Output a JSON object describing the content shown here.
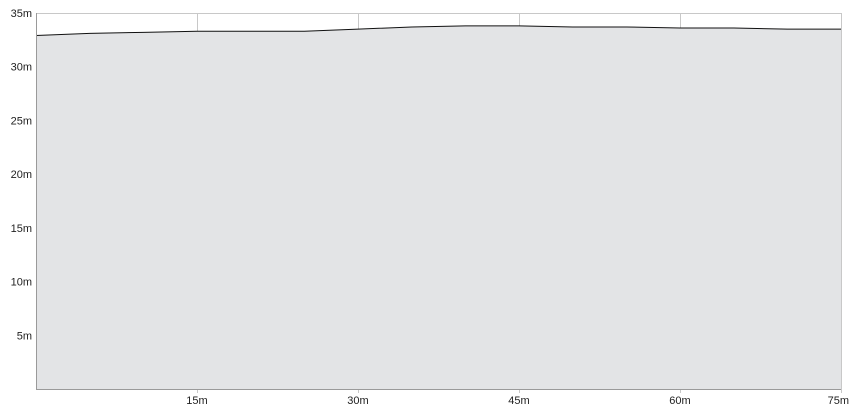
{
  "chart_data": {
    "type": "area",
    "x": [
      0,
      5,
      10,
      15,
      20,
      25,
      30,
      35,
      40,
      45,
      50,
      55,
      60,
      65,
      70,
      75
    ],
    "series": [
      {
        "values": [
          32.9,
          33.1,
          33.2,
          33.3,
          33.3,
          33.3,
          33.5,
          33.7,
          33.8,
          33.8,
          33.7,
          33.7,
          33.6,
          33.6,
          33.5,
          33.5
        ]
      }
    ],
    "x_ticks": [
      15,
      30,
      45,
      60,
      75
    ],
    "x_tick_labels": [
      "15m",
      "30m",
      "45m",
      "60m",
      "75m"
    ],
    "y_ticks": [
      5,
      10,
      15,
      20,
      25,
      30,
      35
    ],
    "y_tick_labels": [
      "5m",
      "10m",
      "15m",
      "20m",
      "25m",
      "30m",
      "35m"
    ],
    "xlim": [
      0,
      75
    ],
    "ylim": [
      0,
      35
    ],
    "grid": true,
    "legend": "none",
    "colors": {
      "fill": "#e3e4e6",
      "line": "#111111",
      "grid": "#c8c8c8",
      "axis": "#9a9a9a"
    }
  }
}
